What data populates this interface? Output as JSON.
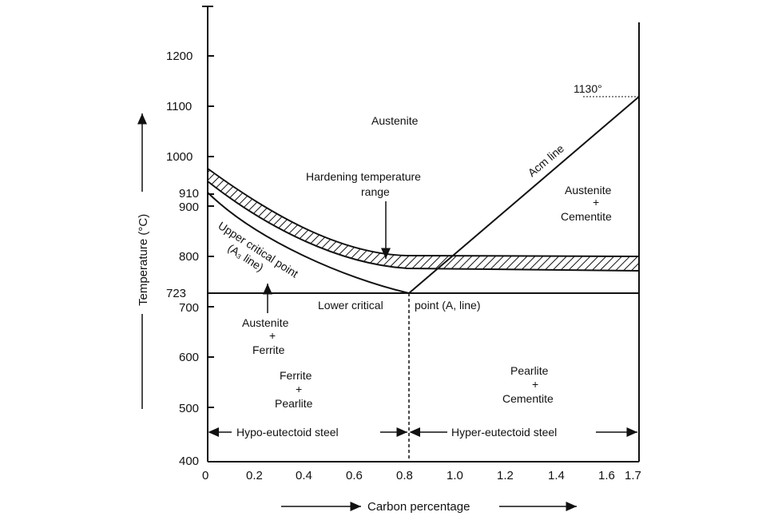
{
  "chart_data": {
    "type": "phase-diagram",
    "xlabel": "Carbon percentage",
    "ylabel": "Temperature (°C)",
    "x_ticks": [
      "0",
      "0.2",
      "0.4",
      "0.6",
      "0.8",
      "1.0",
      "1.2",
      "1.4",
      "1.6",
      "1.7"
    ],
    "y_ticks": [
      "400",
      "500",
      "600",
      "700",
      "723",
      "800",
      "900",
      "910",
      "1000",
      "1100",
      "1200"
    ],
    "xlim": [
      0,
      1.7
    ],
    "ylim": [
      400,
      1300
    ],
    "curves": {
      "a3_line": [
        [
          0,
          910
        ],
        [
          0.2,
          850
        ],
        [
          0.4,
          800
        ],
        [
          0.6,
          755
        ],
        [
          0.8,
          723
        ]
      ],
      "hardening_upper": [
        [
          0,
          960
        ],
        [
          0.2,
          900
        ],
        [
          0.4,
          850
        ],
        [
          0.6,
          815
        ],
        [
          0.8,
          800
        ],
        [
          1.7,
          800
        ]
      ],
      "hardening_lower": [
        [
          0,
          935
        ],
        [
          0.2,
          875
        ],
        [
          0.4,
          825
        ],
        [
          0.6,
          790
        ],
        [
          0.8,
          778
        ],
        [
          1.7,
          775
        ]
      ],
      "acm_line": [
        [
          0.8,
          723
        ],
        [
          1.7,
          1130
        ]
      ],
      "lower_critical": [
        [
          0,
          723
        ],
        [
          1.7,
          723
        ]
      ],
      "eutectoid": [
        [
          0.8,
          400
        ],
        [
          0.8,
          723
        ]
      ]
    },
    "labels": {
      "austenite": "Austenite",
      "hardening": [
        "Hardening temperature",
        "range"
      ],
      "austenite_cementite": [
        "Austenite",
        "+",
        "Cementite"
      ],
      "acm_line": "Acm line",
      "upper_critical": [
        "Upper critical point",
        "(A₃ line)"
      ],
      "lower_critical_left": "Lower critical",
      "lower_critical_right": "point (A, line)",
      "austenite_ferrite": [
        "Austenite",
        "+",
        "Ferrite"
      ],
      "ferrite_pearlite": [
        "Ferrite",
        "+",
        "Pearlite"
      ],
      "pearlite_cementite": [
        "Pearlite",
        "+",
        "Cementite"
      ],
      "hypo": "Hypo-eutectoid steel",
      "hyper": "Hyper-eutectoid steel",
      "temp_1130": "1130°"
    }
  }
}
